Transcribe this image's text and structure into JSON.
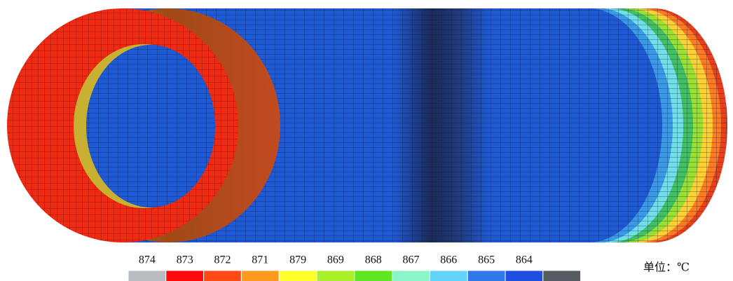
{
  "legend": {
    "labels": [
      "874",
      "873",
      "872",
      "871",
      "879",
      "869",
      "868",
      "867",
      "866",
      "865",
      "864"
    ],
    "colors": [
      "#b9bdc1",
      "#ff0a0a",
      "#ff4a14",
      "#ff9a1e",
      "#ffff2a",
      "#aaf02a",
      "#5ee61e",
      "#8cf5c8",
      "#62d4fa",
      "#2f7ae8",
      "#1e4fe0",
      "#575c62"
    ]
  },
  "unit": "单位：℃"
}
